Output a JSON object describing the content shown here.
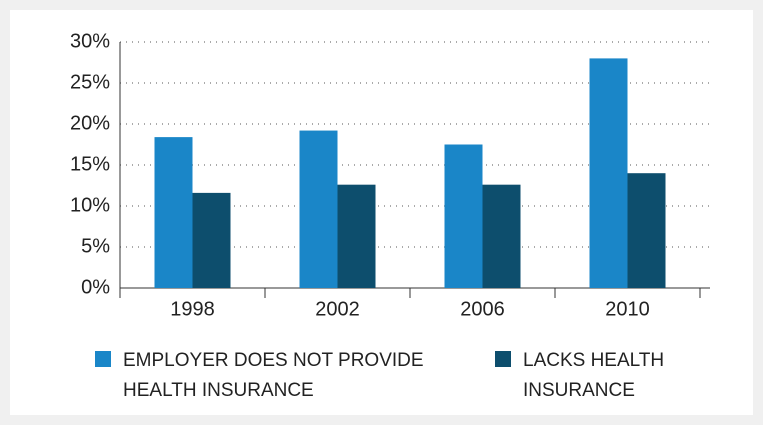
{
  "chart_data": {
    "type": "bar",
    "categories": [
      "1998",
      "2002",
      "2006",
      "2010"
    ],
    "series": [
      {
        "name": "EMPLOYER DOES NOT PROVIDE HEALTH INSURANCE",
        "color": "#1a86c8",
        "values": [
          18.4,
          19.2,
          17.5,
          28.0
        ]
      },
      {
        "name": "LACKS HEALTH INSURANCE",
        "color": "#0d4e6d",
        "values": [
          11.6,
          12.6,
          12.6,
          14.0
        ]
      }
    ],
    "ylim": [
      0,
      30
    ],
    "yticks": [
      {
        "value": 0,
        "label": "0%"
      },
      {
        "value": 5,
        "label": "5%"
      },
      {
        "value": 10,
        "label": "10%"
      },
      {
        "value": 15,
        "label": "15%"
      },
      {
        "value": 20,
        "label": "20%"
      },
      {
        "value": 25,
        "label": "25%"
      },
      {
        "value": 30,
        "label": "30%"
      }
    ],
    "grid": true
  }
}
